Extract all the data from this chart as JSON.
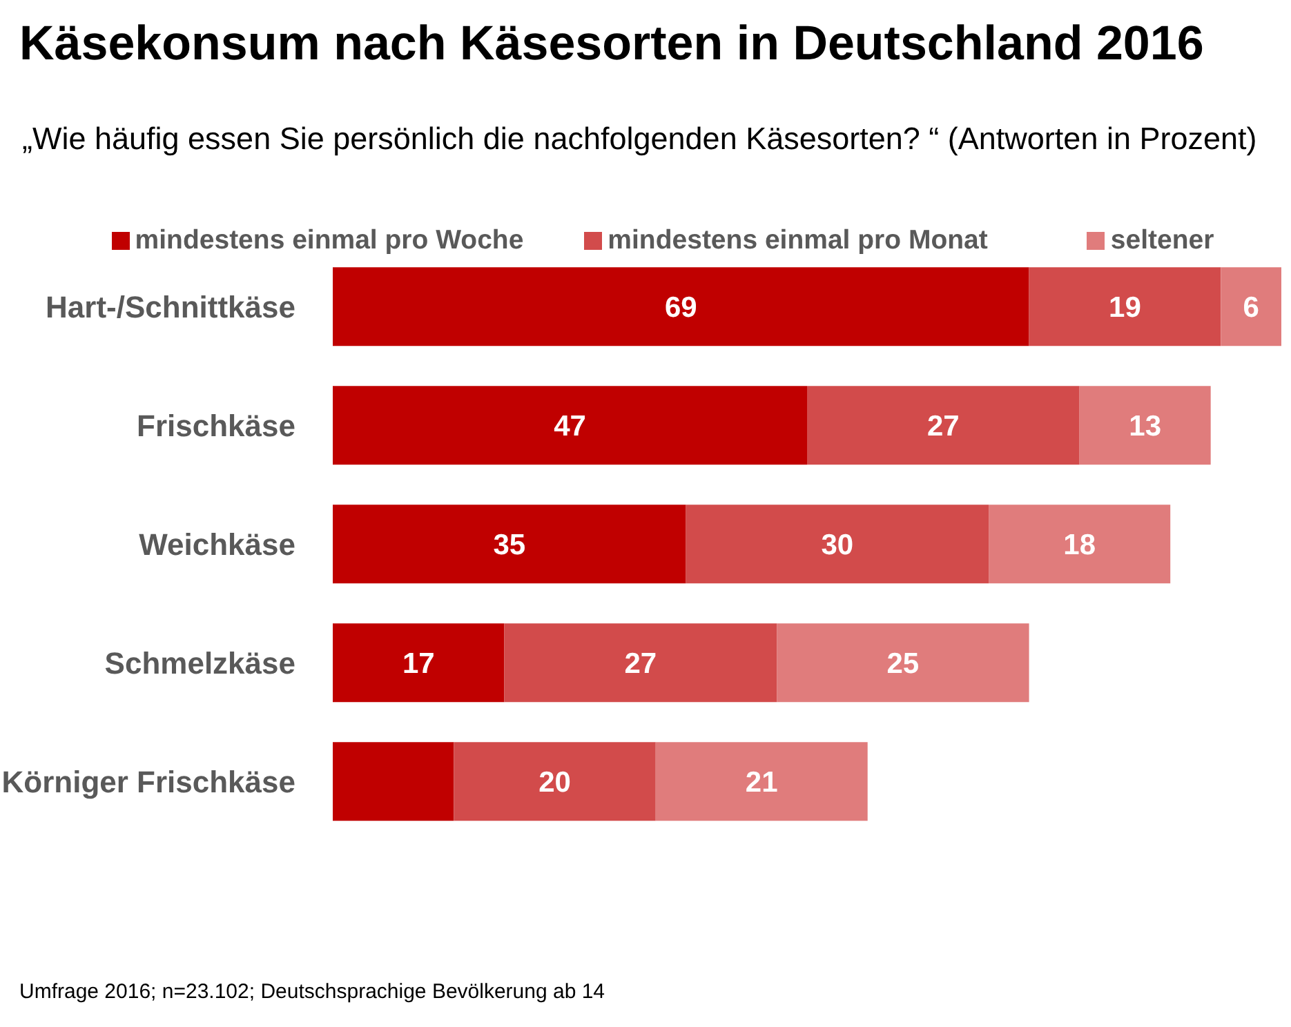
{
  "chart_data": {
    "type": "bar",
    "orientation": "horizontal",
    "stacked": true,
    "title": "Käsekonsum nach Käsesorten in Deutschland 2016",
    "subtitle": "„Wie häufig essen Sie persönlich die nachfolgenden Käsesorten? “ (Antworten in Prozent)",
    "categories": [
      "Hart-/Schnittkäse",
      "Frischkäse",
      "Weichkäse",
      "Schmelzkäse",
      "Körniger Frischkäse"
    ],
    "series": [
      {
        "name": "mindestens einmal pro Woche",
        "color": "#c00000",
        "values": [
          69,
          47,
          35,
          17,
          12
        ],
        "value_labels": [
          "69",
          "47",
          "35",
          "17",
          null
        ]
      },
      {
        "name": "mindestens einmal pro Monat",
        "color": "#d24b4b",
        "values": [
          19,
          27,
          30,
          27,
          20
        ],
        "value_labels": [
          "19",
          "27",
          "30",
          "27",
          "20"
        ]
      },
      {
        "name": "seltener",
        "color": "#e07c7c",
        "values": [
          6,
          13,
          18,
          25,
          21
        ],
        "value_labels": [
          "6",
          "13",
          "18",
          "25",
          "21"
        ]
      }
    ],
    "legend": "top",
    "tick_labels": "y",
    "annotations": [
      "Umfrage 2016; n=23.102; Deutschsprachige Bevölkerung ab 14"
    ]
  }
}
